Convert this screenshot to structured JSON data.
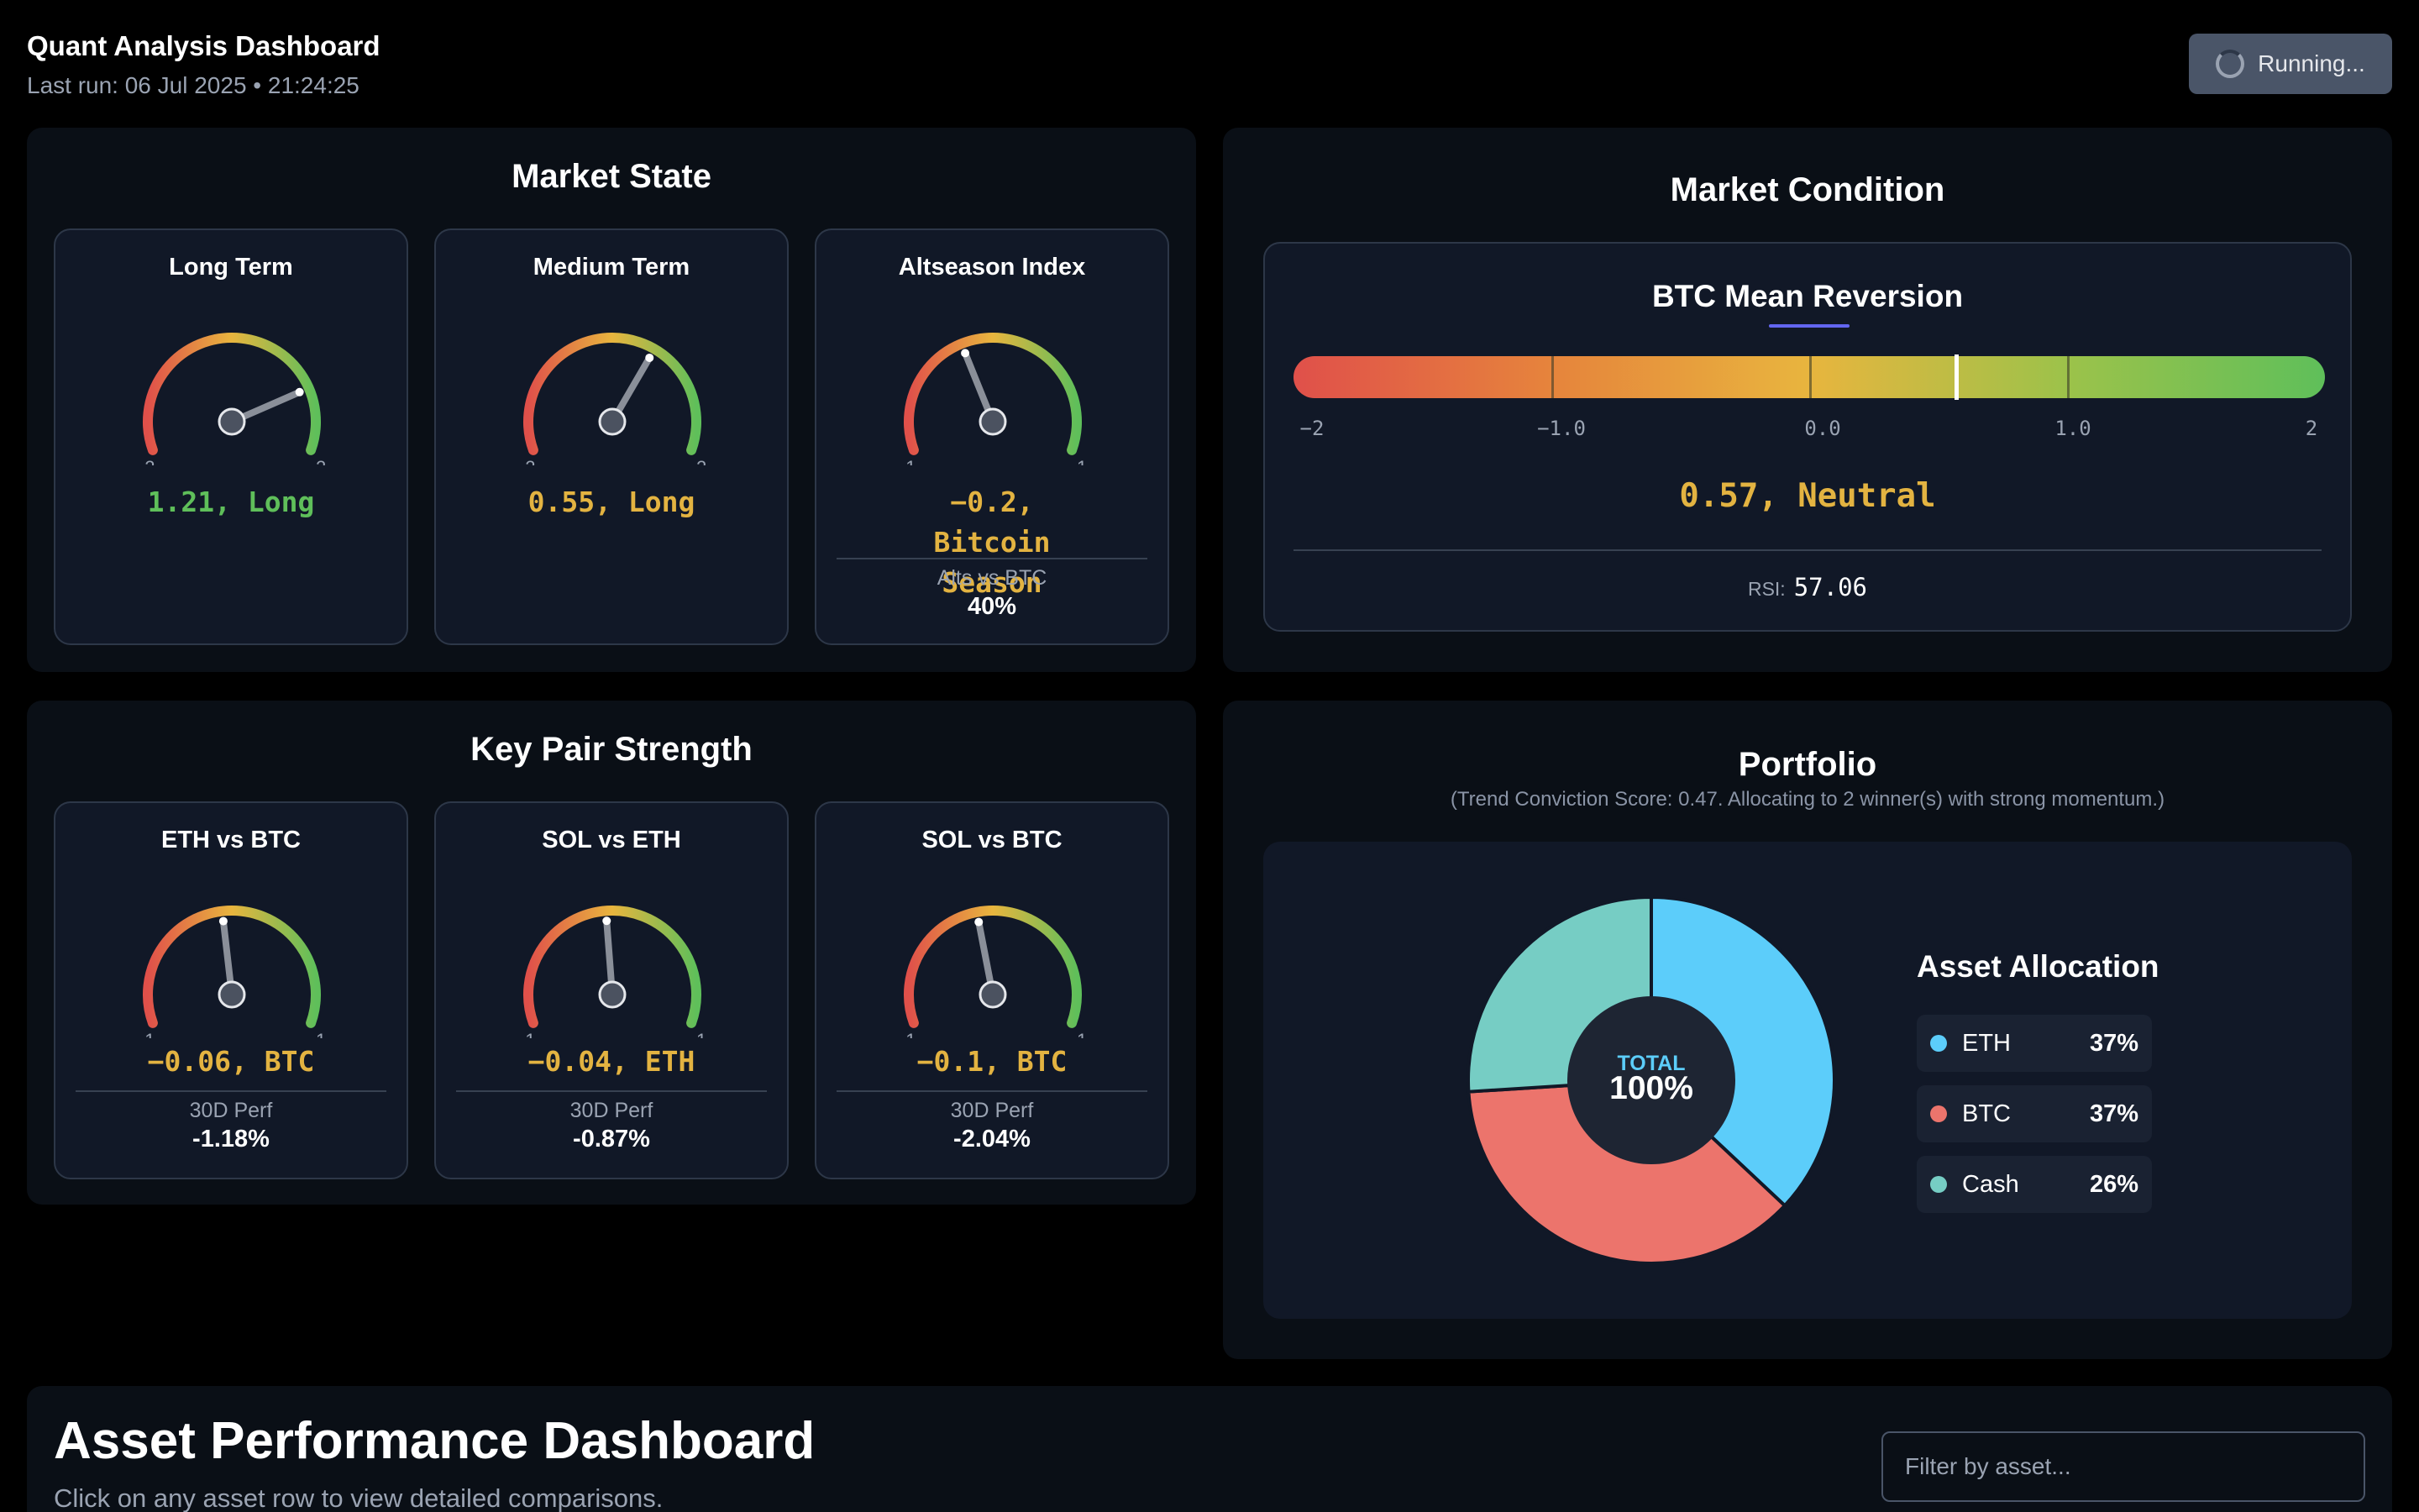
{
  "header": {
    "title": "Quant Analysis Dashboard",
    "last_run": "Last run: 06 Jul 2025 • 21:24:25",
    "run_button": "Running..."
  },
  "market_state": {
    "title": "Market State",
    "cards": [
      {
        "title": "Long Term",
        "min": "−2",
        "max": "2",
        "range": [
          -2,
          2
        ],
        "value": 1.21,
        "value_text": "1.21, Long",
        "color": "#5fbf5a"
      },
      {
        "title": "Medium Term",
        "min": "−2",
        "max": "2",
        "range": [
          -2,
          2
        ],
        "value": 0.55,
        "value_text": "0.55, Long",
        "color": "#e3b341"
      },
      {
        "title": "Altseason Index",
        "min": "−1",
        "max": "1",
        "range": [
          -1,
          1
        ],
        "value": -0.2,
        "value_text": "−0.2, Bitcoin Season",
        "color": "#e3b341",
        "sub_label": "Alts vs BTC",
        "sub_value": "40%"
      }
    ]
  },
  "key_pairs": {
    "title": "Key Pair Strength",
    "cards": [
      {
        "title": "ETH vs BTC",
        "min": "−1",
        "max": "1",
        "range": [
          -1,
          1
        ],
        "value": -0.06,
        "value_text": "−0.06, BTC",
        "color": "#e3b341",
        "sub_label": "30D Perf",
        "sub_value": "-1.18%"
      },
      {
        "title": "SOL vs ETH",
        "min": "−1",
        "max": "1",
        "range": [
          -1,
          1
        ],
        "value": -0.04,
        "value_text": "−0.04, ETH",
        "color": "#e3b341",
        "sub_label": "30D Perf",
        "sub_value": "-0.87%"
      },
      {
        "title": "SOL vs BTC",
        "min": "−1",
        "max": "1",
        "range": [
          -1,
          1
        ],
        "value": -0.1,
        "value_text": "−0.1, BTC",
        "color": "#e3b341",
        "sub_label": "30D Perf",
        "sub_value": "-2.04%"
      }
    ]
  },
  "market_condition": {
    "title": "Market Condition",
    "indicator_title": "BTC Mean Reversion",
    "axis_labels": [
      "−2",
      "−1.0",
      "0.0",
      "1.0",
      "2"
    ],
    "range": [
      -2,
      2
    ],
    "value": 0.57,
    "value_text": "0.57, Neutral",
    "rsi_label": "RSI:",
    "rsi_value": "57.06"
  },
  "portfolio": {
    "title": "Portfolio",
    "subtitle": "(Trend Conviction Score: 0.47. Allocating to 2 winner(s) with strong momentum.)",
    "center_label": "TOTAL",
    "center_value": "100%",
    "allocation_title": "Asset Allocation",
    "allocations": [
      {
        "name": "ETH",
        "pct": "37%",
        "value": 37,
        "color": "#5ccdfa"
      },
      {
        "name": "BTC",
        "pct": "37%",
        "value": 37,
        "color": "#ec746c"
      },
      {
        "name": "Cash",
        "pct": "26%",
        "value": 26,
        "color": "#76cdc4"
      }
    ]
  },
  "asset_performance": {
    "title": "Asset Performance Dashboard",
    "subtitle": "Click on any asset row to view detailed comparisons.",
    "filter_placeholder": "Filter by asset..."
  }
}
